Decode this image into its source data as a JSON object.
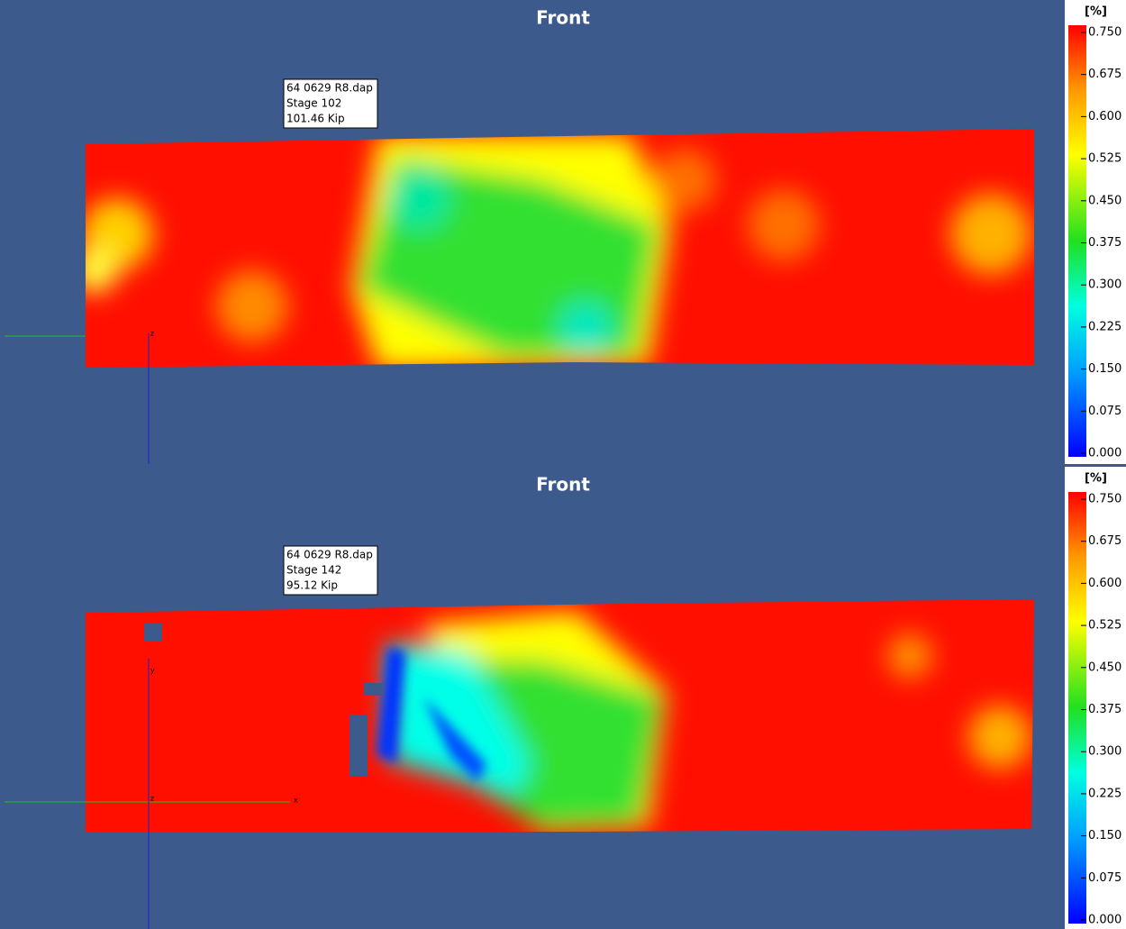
{
  "panels": [
    {
      "title": "Front",
      "unit": "[%]",
      "ticks": [
        "0.750",
        "0.675",
        "0.600",
        "0.525",
        "0.450",
        "0.375",
        "0.300",
        "0.225",
        "0.150",
        "0.075",
        "0.000"
      ],
      "info": [
        "64 0629 R8.dap",
        "Stage 102",
        "101.46 Kip"
      ],
      "axis_labels": [
        "z"
      ]
    },
    {
      "title": "Front",
      "unit": "[%]",
      "ticks": [
        "0.750",
        "0.675",
        "0.600",
        "0.525",
        "0.450",
        "0.375",
        "0.300",
        "0.225",
        "0.150",
        "0.075",
        "0.000"
      ],
      "info": [
        "64 0629 R8.dap",
        "Stage 142",
        "95.12 Kip"
      ],
      "axis_labels": [
        "y",
        "z",
        "x"
      ]
    }
  ]
}
